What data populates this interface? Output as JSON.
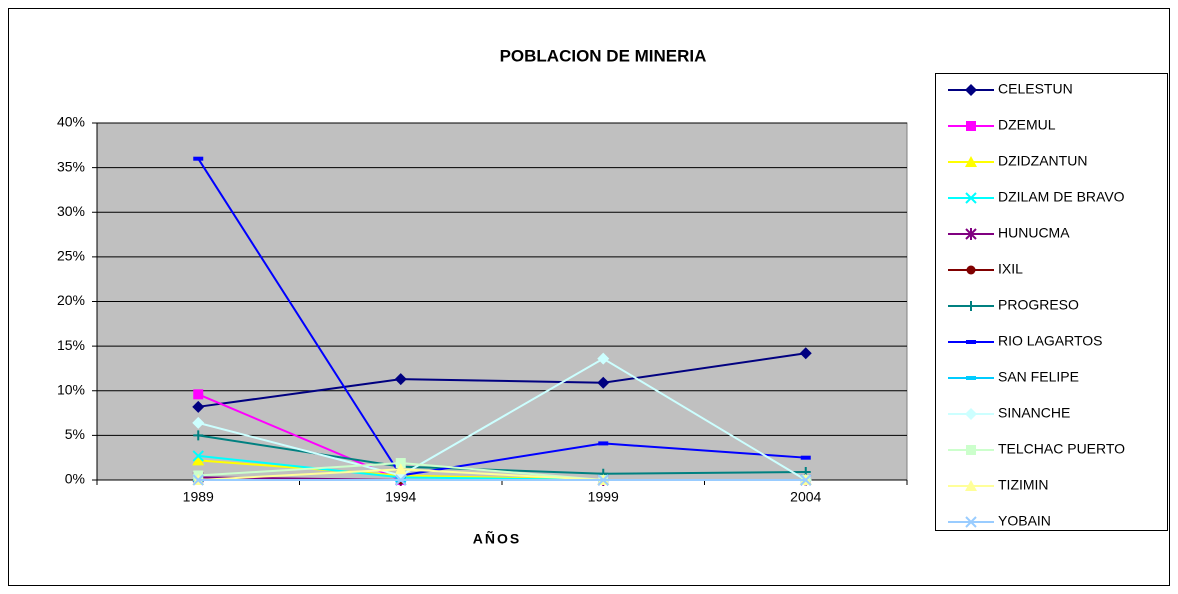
{
  "chart_data": {
    "type": "line",
    "title": "POBLACION DE MINERIA",
    "x_label": "AÑOS",
    "categories": [
      "1989",
      "1994",
      "1999",
      "2004"
    ],
    "ylim": [
      0,
      40
    ],
    "yticks": [
      {
        "value": 0,
        "label": "0%"
      },
      {
        "value": 5,
        "label": "5%"
      },
      {
        "value": 10,
        "label": "10%"
      },
      {
        "value": 15,
        "label": "15%"
      },
      {
        "value": 20,
        "label": "20%"
      },
      {
        "value": 25,
        "label": "25%"
      },
      {
        "value": 30,
        "label": "30%"
      },
      {
        "value": 35,
        "label": "35%"
      },
      {
        "value": 40,
        "label": "40%"
      }
    ],
    "grid": true,
    "legend": "right",
    "series": [
      {
        "name": "CELESTUN",
        "color": "#000080",
        "marker": "diamond",
        "values": [
          8.2,
          11.3,
          10.9,
          14.2
        ]
      },
      {
        "name": "DZEMUL",
        "color": "#FF00FF",
        "marker": "square",
        "values": [
          9.6,
          0,
          0,
          0
        ]
      },
      {
        "name": "DZIDZANTUN",
        "color": "#FFFF00",
        "marker": "triangle",
        "values": [
          2.2,
          0.5,
          0,
          0
        ]
      },
      {
        "name": "DZILAM DE BRAVO",
        "color": "#00FFFF",
        "marker": "x",
        "values": [
          2.7,
          0.3,
          0,
          0
        ]
      },
      {
        "name": "HUNUCMA",
        "color": "#800080",
        "marker": "star",
        "values": [
          0.3,
          0,
          0,
          0
        ]
      },
      {
        "name": "IXIL",
        "color": "#800000",
        "marker": "circle",
        "values": [
          0,
          0,
          0,
          0
        ]
      },
      {
        "name": "PROGRESO",
        "color": "#008080",
        "marker": "plus",
        "values": [
          5.0,
          1.5,
          0.7,
          0.9
        ]
      },
      {
        "name": "RIO LAGARTOS",
        "color": "#0000FF",
        "marker": "dash",
        "values": [
          36.0,
          0.5,
          4.1,
          2.5
        ]
      },
      {
        "name": "SAN FELIPE",
        "color": "#00CCFF",
        "marker": "dash",
        "values": [
          0,
          0,
          0,
          0
        ]
      },
      {
        "name": "SINANCHE",
        "color": "#CCFFFF",
        "marker": "diamond",
        "values": [
          6.4,
          0.5,
          13.6,
          0
        ]
      },
      {
        "name": "TELCHAC PUERTO",
        "color": "#CCFFCC",
        "marker": "square",
        "values": [
          0.5,
          1.9,
          0,
          0
        ]
      },
      {
        "name": "TIZIMIN",
        "color": "#FFFF99",
        "marker": "triangle",
        "values": [
          0,
          1.2,
          0,
          0
        ]
      },
      {
        "name": "YOBAIN",
        "color": "#99CCFF",
        "marker": "x",
        "values": [
          0,
          0,
          0,
          0
        ]
      }
    ]
  }
}
